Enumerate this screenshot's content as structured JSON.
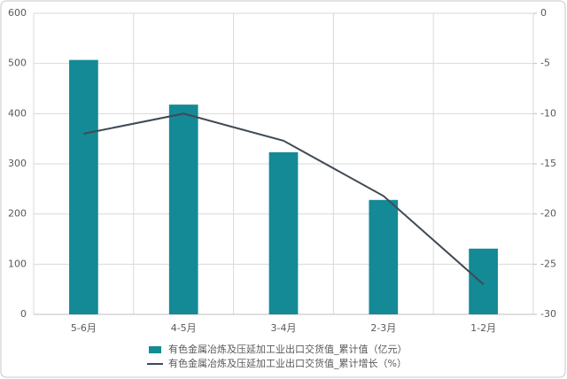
{
  "chart_data": {
    "type": "bar_line",
    "categories": [
      "5-6月",
      "4-5月",
      "3-4月",
      "2-3月",
      "1-2月"
    ],
    "series": [
      {
        "name": "有色金属冶炼及压延加工业出口交货值_累计值（亿元）",
        "type": "bar",
        "color": "#138a96",
        "values": [
          507,
          418,
          323,
          228,
          131
        ]
      },
      {
        "name": "有色金属冶炼及压延加工业出口交货值_累计增长（%）",
        "type": "line",
        "color": "#404a55",
        "axis": "y2",
        "values": [
          -12,
          -10,
          -12.7,
          -18.2,
          -27
        ]
      }
    ],
    "ylim": [
      0,
      600
    ],
    "yticks": [
      0,
      100,
      200,
      300,
      400,
      500,
      600
    ],
    "y2lim": [
      -30,
      0
    ],
    "y2ticks": [
      0,
      -5,
      -10,
      -15,
      -20,
      -25,
      -30
    ],
    "grid": true,
    "legend": "bottom"
  }
}
